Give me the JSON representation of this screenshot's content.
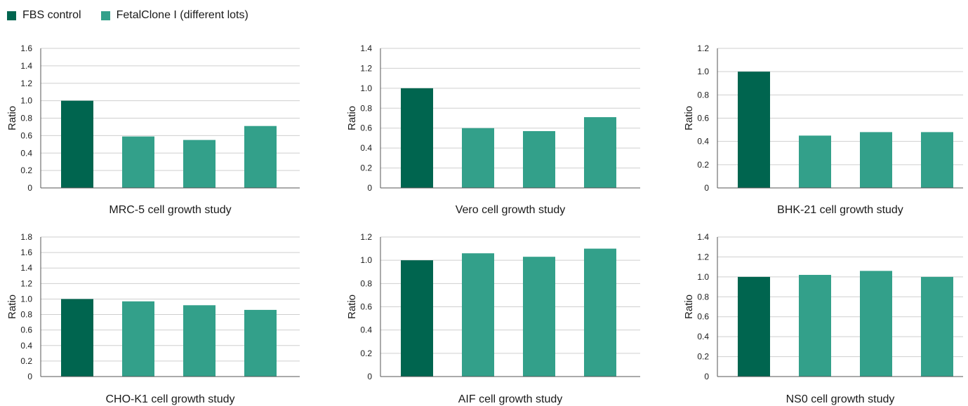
{
  "legend": {
    "items": [
      {
        "label": "FBS control",
        "color": "#00654f"
      },
      {
        "label": "FetalClone I (different lots)",
        "color": "#33a08a"
      }
    ]
  },
  "chart_data": [
    {
      "type": "bar",
      "title": "MRC-5 cell growth study",
      "ylabel": "Ratio",
      "xlabel": "",
      "ylim": [
        0,
        1.6
      ],
      "yticks": [
        "0",
        "0.2",
        "0.4",
        "0.6",
        "0.8",
        "1.0",
        "1.2",
        "1.4",
        "1.6"
      ],
      "series": [
        {
          "name": "FBS control",
          "values": [
            1.0,
            null,
            null,
            null
          ]
        },
        {
          "name": "FetalClone I (different lots)",
          "values": [
            null,
            0.59,
            0.55,
            0.71
          ]
        }
      ]
    },
    {
      "type": "bar",
      "title": "Vero cell growth study",
      "ylabel": "Ratio",
      "xlabel": "",
      "ylim": [
        0,
        1.4
      ],
      "yticks": [
        "0",
        "0.2",
        "0.4",
        "0.6",
        "0.8",
        "1.0",
        "1.2",
        "1.4"
      ],
      "series": [
        {
          "name": "FBS control",
          "values": [
            1.0,
            null,
            null,
            null
          ]
        },
        {
          "name": "FetalClone I (different lots)",
          "values": [
            null,
            0.6,
            0.57,
            0.71
          ]
        }
      ]
    },
    {
      "type": "bar",
      "title": "BHK-21 cell growth study",
      "ylabel": "Ratio",
      "xlabel": "",
      "ylim": [
        0,
        1.2
      ],
      "yticks": [
        "0",
        "0.2",
        "0.4",
        "0.6",
        "0.8",
        "1.0",
        "1.2"
      ],
      "series": [
        {
          "name": "FBS control",
          "values": [
            1.0,
            null,
            null,
            null
          ]
        },
        {
          "name": "FetalClone I (different lots)",
          "values": [
            null,
            0.45,
            0.48,
            0.48
          ]
        }
      ]
    },
    {
      "type": "bar",
      "title": "CHO-K1 cell growth study",
      "ylabel": "Ratio",
      "xlabel": "",
      "ylim": [
        0,
        1.8
      ],
      "yticks": [
        "0",
        "0.2",
        "0.4",
        "0.6",
        "0.8",
        "1.0",
        "1.2",
        "1.4",
        "1.6",
        "1.8"
      ],
      "series": [
        {
          "name": "FBS control",
          "values": [
            1.0,
            null,
            null,
            null
          ]
        },
        {
          "name": "FetalClone I (different lots)",
          "values": [
            null,
            0.97,
            0.92,
            0.86
          ]
        }
      ]
    },
    {
      "type": "bar",
      "title": "AIF cell growth study",
      "ylabel": "Ratio",
      "xlabel": "",
      "ylim": [
        0,
        1.2
      ],
      "yticks": [
        "0",
        "0.2",
        "0.4",
        "0.6",
        "0.8",
        "1.0",
        "1.2"
      ],
      "series": [
        {
          "name": "FBS control",
          "values": [
            1.0,
            null,
            null,
            null
          ]
        },
        {
          "name": "FetalClone I (different lots)",
          "values": [
            null,
            1.06,
            1.03,
            1.1
          ]
        }
      ]
    },
    {
      "type": "bar",
      "title": "NS0 cell growth study",
      "ylabel": "Ratio",
      "xlabel": "",
      "ylim": [
        0,
        1.4
      ],
      "yticks": [
        "0",
        "0.2",
        "0.4",
        "0.6",
        "0.8",
        "1.0",
        "1.2",
        "1.4"
      ],
      "series": [
        {
          "name": "FBS control",
          "values": [
            1.0,
            null,
            null,
            null
          ]
        },
        {
          "name": "FetalClone I (different lots)",
          "values": [
            null,
            1.02,
            1.06,
            1.0
          ]
        }
      ]
    }
  ]
}
